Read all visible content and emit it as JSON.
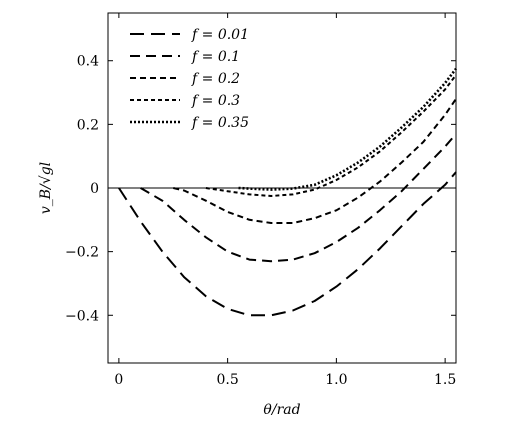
{
  "chart_data": {
    "type": "line",
    "title": "",
    "xlabel": "θ/rad",
    "ylabel": "v_B/√gl",
    "xlim": [
      -0.05,
      1.55
    ],
    "ylim": [
      -0.55,
      0.55
    ],
    "xticks": [
      0,
      0.5,
      1.0,
      1.5
    ],
    "xtick_labels": [
      "0",
      "0.5",
      "1.0",
      "1.5"
    ],
    "yticks": [
      -0.4,
      -0.2,
      0,
      0.2,
      0.4
    ],
    "ytick_labels": [
      "−0.4",
      "−0.2",
      "0",
      "0.2",
      "0.4"
    ],
    "grid": false,
    "legend_position": "top-left",
    "reference_line": 0,
    "series": [
      {
        "name": "f = 0.01",
        "dash": "long-dash",
        "x": [
          0,
          0.1,
          0.2,
          0.3,
          0.4,
          0.5,
          0.6,
          0.7,
          0.8,
          0.9,
          1.0,
          1.1,
          1.2,
          1.3,
          1.4,
          1.5,
          1.55
        ],
        "values": [
          0,
          -0.105,
          -0.2,
          -0.28,
          -0.34,
          -0.38,
          -0.4,
          -0.4,
          -0.385,
          -0.355,
          -0.31,
          -0.255,
          -0.19,
          -0.12,
          -0.05,
          0.01,
          0.05
        ]
      },
      {
        "name": "f = 0.1",
        "dash": "dash",
        "x": [
          0.1,
          0.2,
          0.3,
          0.4,
          0.5,
          0.6,
          0.7,
          0.8,
          0.9,
          1.0,
          1.1,
          1.2,
          1.3,
          1.4,
          1.5,
          1.55
        ],
        "values": [
          0,
          -0.04,
          -0.1,
          -0.155,
          -0.2,
          -0.225,
          -0.23,
          -0.225,
          -0.205,
          -0.17,
          -0.125,
          -0.07,
          -0.01,
          0.06,
          0.13,
          0.17
        ]
      },
      {
        "name": "f = 0.2",
        "dash": "short-dash",
        "x": [
          0.25,
          0.3,
          0.4,
          0.5,
          0.6,
          0.7,
          0.8,
          0.9,
          1.0,
          1.1,
          1.2,
          1.3,
          1.4,
          1.5,
          1.55
        ],
        "values": [
          0,
          -0.008,
          -0.04,
          -0.075,
          -0.1,
          -0.11,
          -0.11,
          -0.095,
          -0.07,
          -0.03,
          0.02,
          0.08,
          0.145,
          0.23,
          0.28
        ]
      },
      {
        "name": "f = 0.3",
        "dash": "fine-dash",
        "x": [
          0.4,
          0.5,
          0.6,
          0.7,
          0.8,
          0.9,
          1.0,
          1.1,
          1.2,
          1.3,
          1.4,
          1.5,
          1.55
        ],
        "values": [
          0,
          -0.01,
          -0.02,
          -0.025,
          -0.02,
          -0.005,
          0.025,
          0.065,
          0.115,
          0.175,
          0.24,
          0.31,
          0.355
        ]
      },
      {
        "name": "f = 0.35",
        "dash": "dotted",
        "x": [
          0.55,
          0.6,
          0.7,
          0.8,
          0.9,
          1.0,
          1.1,
          1.2,
          1.3,
          1.4,
          1.5,
          1.55
        ],
        "values": [
          0,
          -0.002,
          -0.005,
          -0.002,
          0.01,
          0.04,
          0.08,
          0.13,
          0.19,
          0.255,
          0.33,
          0.375
        ]
      }
    ]
  }
}
